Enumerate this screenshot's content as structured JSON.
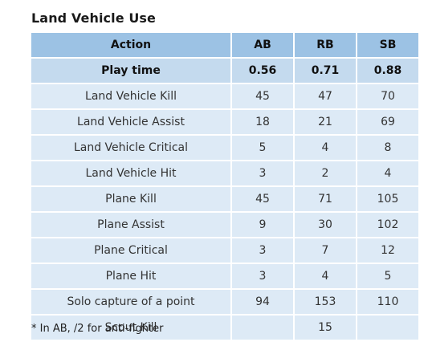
{
  "title": "Land Vehicle Use",
  "table": {
    "headers": [
      "Action",
      "AB",
      "RB",
      "SB"
    ],
    "rows": [
      {
        "cells": [
          "Play time",
          "0.56",
          "0.71",
          "0.88"
        ],
        "highlight": true
      },
      {
        "cells": [
          "Land Vehicle Kill",
          "45",
          "47",
          "70"
        ],
        "highlight": false
      },
      {
        "cells": [
          "Land Vehicle Assist",
          "18",
          "21",
          "69"
        ],
        "highlight": false
      },
      {
        "cells": [
          "Land Vehicle Critical",
          "5",
          "4",
          "8"
        ],
        "highlight": false
      },
      {
        "cells": [
          "Land Vehicle Hit",
          "3",
          "2",
          "4"
        ],
        "highlight": false
      },
      {
        "cells": [
          "Plane Kill",
          "45",
          "71",
          "105"
        ],
        "highlight": false
      },
      {
        "cells": [
          "Plane Assist",
          "9",
          "30",
          "102"
        ],
        "highlight": false
      },
      {
        "cells": [
          "Plane Critical",
          "3",
          "7",
          "12"
        ],
        "highlight": false
      },
      {
        "cells": [
          "Plane Hit",
          "3",
          "4",
          "5"
        ],
        "highlight": false
      },
      {
        "cells": [
          "Solo capture of a point",
          "94",
          "153",
          "110"
        ],
        "highlight": false
      },
      {
        "cells": [
          "Scout Kill",
          "",
          "15",
          ""
        ],
        "highlight": false
      }
    ]
  },
  "footnote": "* In AB, /2 for anti-fighter",
  "colors": {
    "header_bg": "#9cc2e4",
    "highlight_row_bg": "#c4daee",
    "row_bg": "#ddeaf6"
  }
}
